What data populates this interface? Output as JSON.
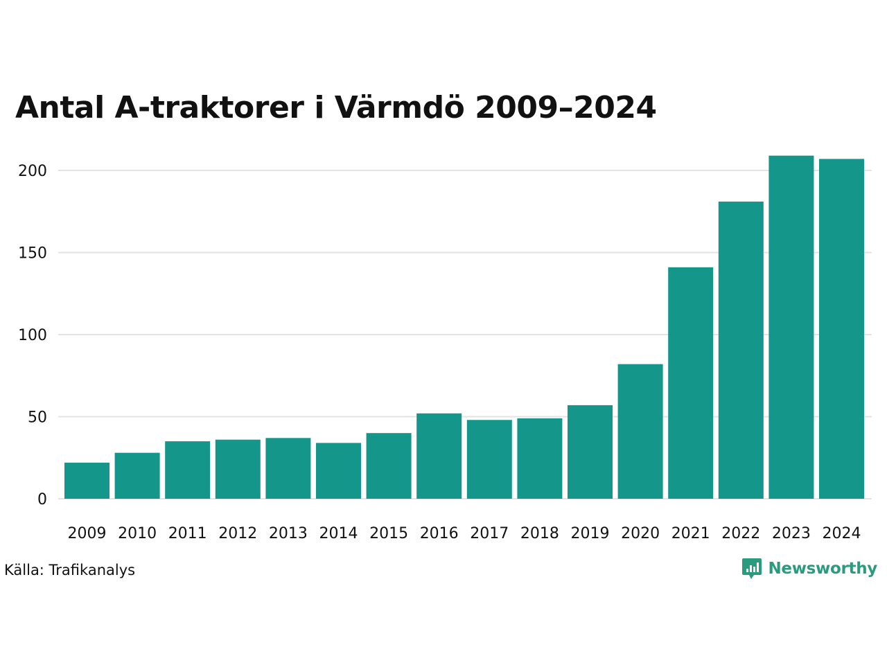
{
  "title": "Antal A-traktorer i Värmdö 2009–2024",
  "source": "Källa: Trafikanalys",
  "brand": {
    "name": "Newsworthy",
    "color": "#2b9b7f",
    "icon": "bar-chart-speech-bubble-icon"
  },
  "colors": {
    "bar": "#14968a",
    "grid": "#e3e3e3",
    "text": "#111111"
  },
  "chart_data": {
    "type": "bar",
    "title": "Antal A-traktorer i Värmdö 2009–2024",
    "xlabel": "",
    "ylabel": "",
    "categories": [
      "2009",
      "2010",
      "2011",
      "2012",
      "2013",
      "2014",
      "2015",
      "2016",
      "2017",
      "2018",
      "2019",
      "2020",
      "2021",
      "2022",
      "2023",
      "2024"
    ],
    "values": [
      22,
      28,
      35,
      36,
      37,
      34,
      40,
      52,
      48,
      49,
      57,
      82,
      141,
      181,
      209,
      207
    ],
    "ylim": [
      0,
      215
    ],
    "yticks": [
      0,
      50,
      100,
      150,
      200
    ],
    "grid": true,
    "legend": "none"
  }
}
